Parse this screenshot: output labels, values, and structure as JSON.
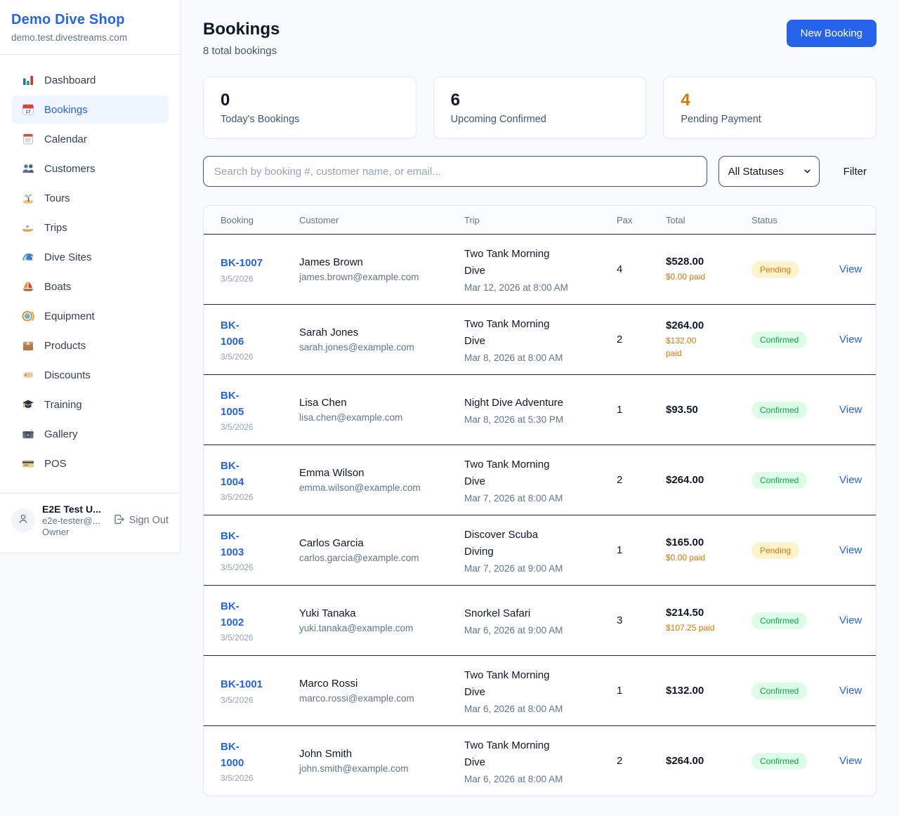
{
  "colors": {
    "accent_blue": "#2563eb",
    "pending_text": "#d97706",
    "pending_bg": "#fdf3cd",
    "confirmed_text": "#16a34a",
    "confirmed_bg": "#dcfce7",
    "page_bg": "#f8fafc"
  },
  "sidebar": {
    "shop_name": "Demo Dive Shop",
    "shop_domain": "demo.test.divestreams.com",
    "items": [
      {
        "label": "Dashboard",
        "icon": "bar-chart-icon",
        "active": false
      },
      {
        "label": "Bookings",
        "icon": "calendar-icon",
        "active": true
      },
      {
        "label": "Calendar",
        "icon": "notepad-calendar-icon",
        "active": false
      },
      {
        "label": "Customers",
        "icon": "people-icon",
        "active": false
      },
      {
        "label": "Tours",
        "icon": "island-icon",
        "active": false
      },
      {
        "label": "Trips",
        "icon": "speedboat-icon",
        "active": false
      },
      {
        "label": "Dive Sites",
        "icon": "wave-icon",
        "active": false
      },
      {
        "label": "Boats",
        "icon": "sailboat-icon",
        "active": false
      },
      {
        "label": "Equipment",
        "icon": "dive-mask-icon",
        "active": false
      },
      {
        "label": "Products",
        "icon": "package-icon",
        "active": false
      },
      {
        "label": "Discounts",
        "icon": "tag-icon",
        "active": false
      },
      {
        "label": "Training",
        "icon": "graduation-cap-icon",
        "active": false
      },
      {
        "label": "Gallery",
        "icon": "camera-icon",
        "active": false
      },
      {
        "label": "POS",
        "icon": "credit-card-icon",
        "active": false
      }
    ],
    "user": {
      "name": "E2E Test U...",
      "email": "e2e-tester@...",
      "role": "Owner",
      "sign_out_label": "Sign Out"
    }
  },
  "header": {
    "title": "Bookings",
    "subtitle": "8 total bookings",
    "new_booking_label": "New Booking"
  },
  "stats": [
    {
      "value": "0",
      "label": "Today's Bookings",
      "highlight": false
    },
    {
      "value": "6",
      "label": "Upcoming Confirmed",
      "highlight": false
    },
    {
      "value": "4",
      "label": "Pending Payment",
      "highlight": true
    }
  ],
  "filters": {
    "search_placeholder": "Search by booking #, customer name, or email...",
    "status_selected": "All Statuses",
    "filter_label": "Filter"
  },
  "table": {
    "columns": [
      "Booking",
      "Customer",
      "Trip",
      "Pax",
      "Total",
      "Status"
    ],
    "rows": [
      {
        "booking_id": "BK-1007",
        "booking_date": "3/5/2026",
        "customer_name": "James Brown",
        "customer_email": "james.brown@example.com",
        "trip_name": "Two Tank Morning\nDive",
        "trip_datetime": "Mar 12, 2026 at 8:00 AM",
        "pax": "4",
        "total": "$528.00",
        "paid": "$0.00 paid",
        "status": "Pending",
        "action": "View"
      },
      {
        "booking_id": "BK-\n1006",
        "booking_date": "3/5/2026",
        "customer_name": "Sarah Jones",
        "customer_email": "sarah.jones@example.com",
        "trip_name": "Two Tank Morning\nDive",
        "trip_datetime": "Mar 8, 2026 at 8:00 AM",
        "pax": "2",
        "total": "$264.00",
        "paid": "$132.00\npaid",
        "status": "Confirmed",
        "action": "View"
      },
      {
        "booking_id": "BK-\n1005",
        "booking_date": "3/5/2026",
        "customer_name": "Lisa Chen",
        "customer_email": "lisa.chen@example.com",
        "trip_name": "Night Dive Adventure",
        "trip_datetime": "Mar 8, 2026 at 5:30 PM",
        "pax": "1",
        "total": "$93.50",
        "paid": "",
        "status": "Confirmed",
        "action": "View"
      },
      {
        "booking_id": "BK-\n1004",
        "booking_date": "3/5/2026",
        "customer_name": "Emma Wilson",
        "customer_email": "emma.wilson@example.com",
        "trip_name": "Two Tank Morning\nDive",
        "trip_datetime": "Mar 7, 2026 at 8:00 AM",
        "pax": "2",
        "total": "$264.00",
        "paid": "",
        "status": "Confirmed",
        "action": "View"
      },
      {
        "booking_id": "BK-\n1003",
        "booking_date": "3/5/2026",
        "customer_name": "Carlos Garcia",
        "customer_email": "carlos.garcia@example.com",
        "trip_name": "Discover Scuba\nDiving",
        "trip_datetime": "Mar 7, 2026 at 9:00 AM",
        "pax": "1",
        "total": "$165.00",
        "paid": "$0.00 paid",
        "status": "Pending",
        "action": "View"
      },
      {
        "booking_id": "BK-\n1002",
        "booking_date": "3/5/2026",
        "customer_name": "Yuki Tanaka",
        "customer_email": "yuki.tanaka@example.com",
        "trip_name": "Snorkel Safari",
        "trip_datetime": "Mar 6, 2026 at 9:00 AM",
        "pax": "3",
        "total": "$214.50",
        "paid": "$107.25 paid",
        "status": "Confirmed",
        "action": "View"
      },
      {
        "booking_id": "BK-1001",
        "booking_date": "3/5/2026",
        "customer_name": "Marco Rossi",
        "customer_email": "marco.rossi@example.com",
        "trip_name": "Two Tank Morning\nDive",
        "trip_datetime": "Mar 6, 2026 at 8:00 AM",
        "pax": "1",
        "total": "$132.00",
        "paid": "",
        "status": "Confirmed",
        "action": "View"
      },
      {
        "booking_id": "BK-\n1000",
        "booking_date": "3/5/2026",
        "customer_name": "John Smith",
        "customer_email": "john.smith@example.com",
        "trip_name": "Two Tank Morning\nDive",
        "trip_datetime": "Mar 6, 2026 at 8:00 AM",
        "pax": "2",
        "total": "$264.00",
        "paid": "",
        "status": "Confirmed",
        "action": "View"
      }
    ]
  }
}
